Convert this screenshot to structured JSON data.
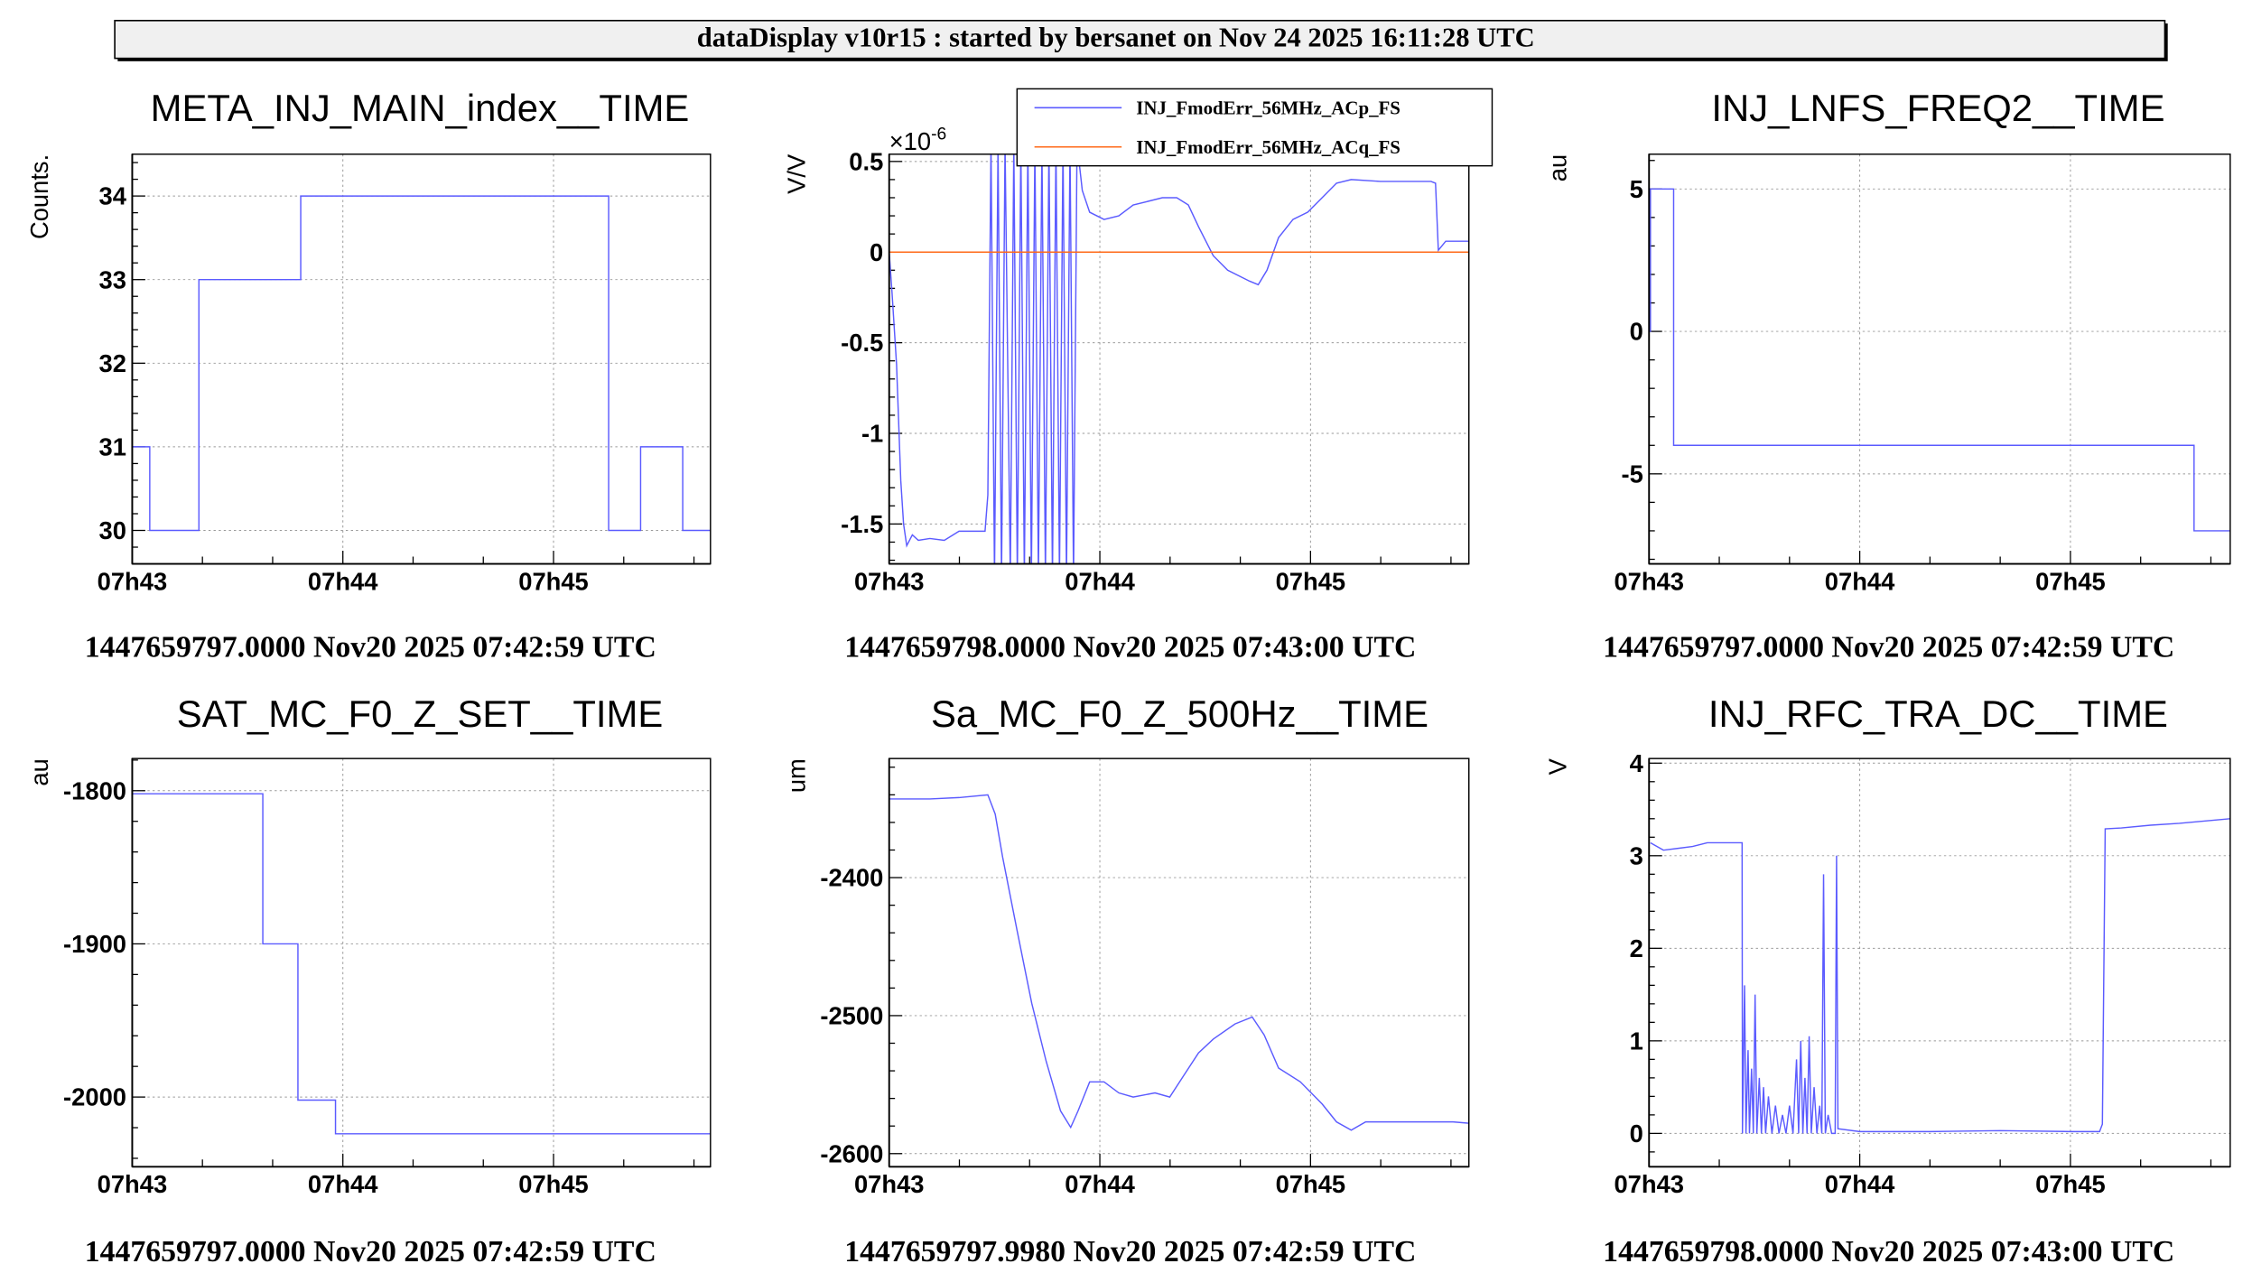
{
  "header": {
    "text": "dataDisplay v10r15 : started by bersanet on Nov 24 2025 16:11:28 UTC"
  },
  "colors": {
    "series": "#5b5bff",
    "series2": "#ff6a1a",
    "grid": "#999999",
    "header_bg": "#f0f0f0"
  },
  "chart_data": [
    {
      "type": "line",
      "title": "META_INJ_MAIN_index__TIME",
      "ylabel": "Counts.",
      "footer": "1447659797.0000 Nov20 2025 07:42:59 UTC",
      "xlim": [
        0,
        164.7
      ],
      "ylim": [
        29.6,
        34.5
      ],
      "yticks": [
        {
          "v": 30,
          "label": "30"
        },
        {
          "v": 31,
          "label": "31"
        },
        {
          "v": 32,
          "label": "32"
        },
        {
          "v": 33,
          "label": "33"
        },
        {
          "v": 34,
          "label": "34"
        }
      ],
      "xticks": [
        {
          "v": 0,
          "label": "07h43"
        },
        {
          "v": 60,
          "label": "07h44"
        },
        {
          "v": 120,
          "label": "07h45"
        }
      ],
      "series": [
        {
          "name": "META_INJ_MAIN_index",
          "color": "#5b5bff",
          "step": true,
          "points": [
            [
              0,
              31
            ],
            [
              5,
              30
            ],
            [
              19,
              33
            ],
            [
              48,
              34
            ],
            [
              135.7,
              30
            ],
            [
              144.8,
              31
            ],
            [
              156.8,
              30
            ],
            [
              164.7,
              30
            ]
          ]
        }
      ]
    },
    {
      "type": "line",
      "title": "",
      "ylabel": "V/V",
      "exponent": "×10",
      "exponent_power": "-6",
      "footer": "1447659798.0000 Nov20 2025 07:43:00 UTC",
      "xlim": [
        0,
        165.1
      ],
      "ylim": [
        -1.72,
        0.54
      ],
      "yticks": [
        {
          "v": 0.5,
          "label": "0.5"
        },
        {
          "v": 0,
          "label": "0"
        },
        {
          "v": -0.5,
          "label": "-0.5"
        },
        {
          "v": -1,
          "label": "-1"
        },
        {
          "v": -1.5,
          "label": "-1.5"
        }
      ],
      "xticks": [
        {
          "v": 0,
          "label": "07h43"
        },
        {
          "v": 60,
          "label": "07h44"
        },
        {
          "v": 120,
          "label": "07h45"
        }
      ],
      "legend": {
        "position": "top-right"
      },
      "series": [
        {
          "name": "INJ_FmodErr_56MHz_ACp_FS",
          "color": "#5b5bff",
          "step": false,
          "points": [
            [
              0,
              0
            ],
            [
              0.8,
              -0.22
            ],
            [
              2.1,
              -0.62
            ],
            [
              3.3,
              -1.26
            ],
            [
              4.1,
              -1.5
            ],
            [
              5.0,
              -1.62
            ],
            [
              6.6,
              -1.56
            ],
            [
              8.3,
              -1.59
            ],
            [
              11.6,
              -1.58
            ],
            [
              15.7,
              -1.59
            ],
            [
              19.9,
              -1.54
            ],
            [
              24.0,
              -1.54
            ],
            [
              27.3,
              -1.54
            ],
            [
              28.1,
              -1.34
            ],
            [
              29,
              0.6
            ],
            [
              30,
              -1.8
            ],
            [
              31,
              0.6
            ],
            [
              32,
              -1.8
            ],
            [
              33,
              0.6
            ],
            [
              34.5,
              -1.8
            ],
            [
              35.5,
              0.6
            ],
            [
              36.5,
              -1.8
            ],
            [
              37.5,
              0.6
            ],
            [
              38.5,
              -1.8
            ],
            [
              39.5,
              0.6
            ],
            [
              40.5,
              -1.8
            ],
            [
              41.5,
              0.6
            ],
            [
              42.5,
              -1.8
            ],
            [
              43.5,
              0.6
            ],
            [
              44.5,
              -1.8
            ],
            [
              45.5,
              0.6
            ],
            [
              46.5,
              -1.8
            ],
            [
              47.5,
              0.6
            ],
            [
              48.5,
              -1.8
            ],
            [
              49.5,
              0.6
            ],
            [
              50.5,
              -1.8
            ],
            [
              51.5,
              0.6
            ],
            [
              52.5,
              -1.8
            ],
            [
              53.5,
              0.6
            ],
            [
              55.0,
              0.34
            ],
            [
              57.1,
              0.22
            ],
            [
              61.2,
              0.18
            ],
            [
              65.4,
              0.2
            ],
            [
              69.5,
              0.26
            ],
            [
              73.7,
              0.28
            ],
            [
              77.8,
              0.3
            ],
            [
              81.9,
              0.3
            ],
            [
              85.2,
              0.26
            ],
            [
              88.1,
              0.14
            ],
            [
              92.3,
              -0.02
            ],
            [
              96.4,
              -0.1
            ],
            [
              102.6,
              -0.16
            ],
            [
              105.1,
              -0.18
            ],
            [
              107.6,
              -0.1
            ],
            [
              110.9,
              0.08
            ],
            [
              115.0,
              0.18
            ],
            [
              119.2,
              0.22
            ],
            [
              123.3,
              0.3
            ],
            [
              127.4,
              0.38
            ],
            [
              131.6,
              0.4
            ],
            [
              139.9,
              0.39
            ],
            [
              148.1,
              0.39
            ],
            [
              154.3,
              0.39
            ],
            [
              155.6,
              0.38
            ],
            [
              156.4,
              0.01
            ],
            [
              158.5,
              0.06
            ],
            [
              165.1,
              0.06
            ]
          ]
        },
        {
          "name": "INJ_FmodErr_56MHz_ACq_FS",
          "color": "#ff6a1a",
          "step": false,
          "points": [
            [
              0,
              0
            ],
            [
              165.1,
              0
            ]
          ]
        }
      ]
    },
    {
      "type": "line",
      "title": "INJ_LNFS_FREQ2__TIME",
      "ylabel": "au",
      "footer": "1447659797.0000 Nov20 2025 07:42:59 UTC",
      "xlim": [
        0,
        165.5
      ],
      "ylim": [
        -8.16,
        6.22
      ],
      "yticks": [
        {
          "v": 5,
          "label": "5"
        },
        {
          "v": 0,
          "label": "0"
        },
        {
          "v": -5,
          "label": "-5"
        }
      ],
      "xticks": [
        {
          "v": 0,
          "label": "07h43"
        },
        {
          "v": 60,
          "label": "07h44"
        },
        {
          "v": 120,
          "label": "07h45"
        }
      ],
      "series": [
        {
          "name": "INJ_LNFS_FREQ2",
          "color": "#5b5bff",
          "step": true,
          "points": [
            [
              0,
              0
            ],
            [
              0.4,
              5
            ],
            [
              7.0,
              -4
            ],
            [
              155.2,
              -7
            ],
            [
              165.5,
              -7
            ]
          ]
        }
      ]
    },
    {
      "type": "line",
      "title": "SAT_MC_F0_Z_SET__TIME",
      "ylabel": "au",
      "footer": "1447659797.0000 Nov20 2025 07:42:59 UTC",
      "xlim": [
        0,
        164.7
      ],
      "ylim": [
        -2045.5,
        -1779
      ],
      "yticks": [
        {
          "v": -1800,
          "label": "-1800"
        },
        {
          "v": -1900,
          "label": "-1900"
        },
        {
          "v": -2000,
          "label": "-2000"
        }
      ],
      "xticks": [
        {
          "v": 0,
          "label": "07h43"
        },
        {
          "v": 60,
          "label": "07h44"
        },
        {
          "v": 120,
          "label": "07h45"
        }
      ],
      "series": [
        {
          "name": "SAT_MC_F0_Z_SET",
          "color": "#5b5bff",
          "step": true,
          "points": [
            [
              0,
              -1802
            ],
            [
              37.2,
              -1900
            ],
            [
              47.2,
              -2002
            ],
            [
              57.9,
              -2024
            ],
            [
              164.7,
              -2024
            ]
          ]
        }
      ]
    },
    {
      "type": "line",
      "title": "Sa_MC_F0_Z_500Hz__TIME",
      "ylabel": "um",
      "footer": "1447659797.9980 Nov20 2025 07:42:59 UTC",
      "xlim": [
        0,
        165.1
      ],
      "ylim": [
        -2609.5,
        -2313.7
      ],
      "yticks": [
        {
          "v": -2400,
          "label": "-2400"
        },
        {
          "v": -2500,
          "label": "-2500"
        },
        {
          "v": -2600,
          "label": "-2600"
        }
      ],
      "xticks": [
        {
          "v": 0,
          "label": "07h43"
        },
        {
          "v": 60,
          "label": "07h44"
        },
        {
          "v": 120,
          "label": "07h45"
        }
      ],
      "series": [
        {
          "name": "Sa_MC_F0_Z_500Hz",
          "color": "#5b5bff",
          "step": false,
          "points": [
            [
              0,
              -2343
            ],
            [
              11.6,
              -2343
            ],
            [
              19.9,
              -2342
            ],
            [
              28.1,
              -2340
            ],
            [
              30.2,
              -2354
            ],
            [
              32.3,
              -2385
            ],
            [
              36.4,
              -2438
            ],
            [
              40.6,
              -2491
            ],
            [
              44.7,
              -2533
            ],
            [
              48.8,
              -2569
            ],
            [
              51.7,
              -2581
            ],
            [
              53.8,
              -2569
            ],
            [
              57.1,
              -2548
            ],
            [
              61.2,
              -2548
            ],
            [
              65.4,
              -2556
            ],
            [
              69.5,
              -2559
            ],
            [
              75.7,
              -2556
            ],
            [
              79.9,
              -2559
            ],
            [
              84.0,
              -2543
            ],
            [
              88.1,
              -2527
            ],
            [
              92.3,
              -2517
            ],
            [
              98.5,
              -2506
            ],
            [
              103.4,
              -2501
            ],
            [
              106.8,
              -2514
            ],
            [
              110.9,
              -2538
            ],
            [
              117.1,
              -2548
            ],
            [
              123.3,
              -2564
            ],
            [
              127.4,
              -2577
            ],
            [
              131.6,
              -2583
            ],
            [
              135.7,
              -2577
            ],
            [
              144.0,
              -2577
            ],
            [
              152.3,
              -2577
            ],
            [
              160.6,
              -2577
            ],
            [
              165.1,
              -2578
            ]
          ]
        }
      ]
    },
    {
      "type": "line",
      "title": "INJ_RFC_TRA_DC__TIME",
      "ylabel": "V",
      "footer": "1447659798.0000 Nov20 2025 07:43:00 UTC",
      "xlim": [
        0,
        165.5
      ],
      "ylim": [
        -0.36,
        4.05
      ],
      "yticks": [
        {
          "v": 4,
          "label": "4"
        },
        {
          "v": 3,
          "label": "3"
        },
        {
          "v": 2,
          "label": "2"
        },
        {
          "v": 1,
          "label": "1"
        },
        {
          "v": 0,
          "label": "0"
        }
      ],
      "xticks": [
        {
          "v": 0,
          "label": "07h43"
        },
        {
          "v": 60,
          "label": "07h44"
        },
        {
          "v": 120,
          "label": "07h45"
        }
      ],
      "series": [
        {
          "name": "INJ_RFC_TRA_DC",
          "color": "#5b5bff",
          "step": false,
          "points": [
            [
              0.4,
              3.14
            ],
            [
              4.1,
              3.06
            ],
            [
              8.3,
              3.08
            ],
            [
              12.4,
              3.1
            ],
            [
              16.6,
              3.14
            ],
            [
              20.7,
              3.14
            ],
            [
              26.5,
              3.14
            ],
            [
              26.6,
              0
            ],
            [
              27.2,
              1.6
            ],
            [
              27.6,
              0
            ],
            [
              28.2,
              0.9
            ],
            [
              28.6,
              0
            ],
            [
              29.2,
              0.7
            ],
            [
              29.7,
              0
            ],
            [
              30.2,
              1.5
            ],
            [
              30.7,
              0
            ],
            [
              31.4,
              0.6
            ],
            [
              32,
              0
            ],
            [
              32.6,
              0.5
            ],
            [
              33.2,
              0
            ],
            [
              34,
              0.4
            ],
            [
              35,
              0
            ],
            [
              36,
              0.3
            ],
            [
              37,
              0
            ],
            [
              38,
              0.2
            ],
            [
              39,
              0
            ],
            [
              40,
              0.3
            ],
            [
              41,
              0
            ],
            [
              42,
              0.8
            ],
            [
              42.6,
              0
            ],
            [
              43.2,
              1.0
            ],
            [
              43.8,
              0
            ],
            [
              44.4,
              0.6
            ],
            [
              45,
              0
            ],
            [
              45.6,
              1.05
            ],
            [
              46.2,
              0
            ],
            [
              47,
              0.5
            ],
            [
              47.8,
              0
            ],
            [
              48.6,
              0.3
            ],
            [
              49.2,
              0
            ],
            [
              49.7,
              2.8
            ],
            [
              50.2,
              0
            ],
            [
              51,
              0.2
            ],
            [
              52,
              0
            ],
            [
              53.0,
              0
            ],
            [
              53.4,
              3.0
            ],
            [
              53.8,
              0.05
            ],
            [
              60,
              0.02
            ],
            [
              80,
              0.02
            ],
            [
              100,
              0.03
            ],
            [
              120,
              0.02
            ],
            [
              128.3,
              0.02
            ],
            [
              129.1,
              0.1
            ],
            [
              129.9,
              3.29
            ],
            [
              134.5,
              3.3
            ],
            [
              142.8,
              3.33
            ],
            [
              151.0,
              3.35
            ],
            [
              165.5,
              3.4
            ]
          ]
        }
      ]
    }
  ]
}
